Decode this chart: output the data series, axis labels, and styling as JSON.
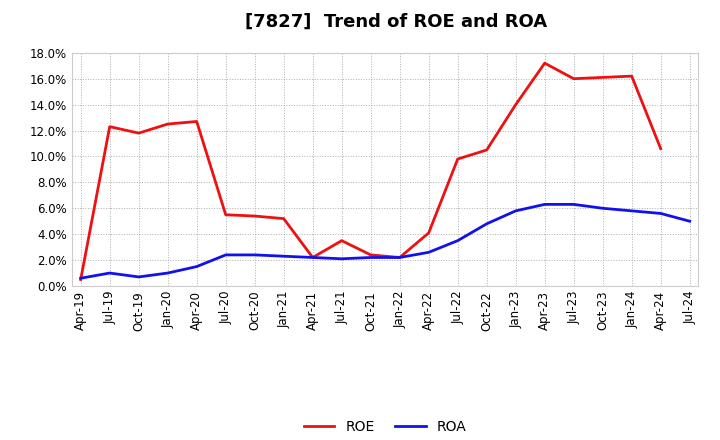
{
  "title": "[7827]  Trend of ROE and ROA",
  "x_labels": [
    "Apr-19",
    "Jul-19",
    "Oct-19",
    "Jan-20",
    "Apr-20",
    "Jul-20",
    "Oct-20",
    "Jan-21",
    "Apr-21",
    "Jul-21",
    "Oct-21",
    "Jan-22",
    "Apr-22",
    "Jul-22",
    "Oct-22",
    "Jan-23",
    "Apr-23",
    "Jul-23",
    "Oct-23",
    "Jan-24",
    "Apr-24",
    "Jul-24"
  ],
  "roe": [
    0.5,
    12.3,
    11.8,
    12.5,
    12.7,
    5.5,
    5.4,
    5.2,
    2.2,
    3.5,
    2.4,
    2.2,
    4.1,
    9.8,
    10.5,
    14.0,
    17.2,
    16.0,
    16.1,
    16.2,
    10.6,
    null
  ],
  "roa": [
    0.6,
    1.0,
    0.7,
    1.0,
    1.5,
    2.4,
    2.4,
    2.3,
    2.2,
    2.1,
    2.2,
    2.2,
    2.6,
    3.5,
    4.8,
    5.8,
    6.3,
    6.3,
    6.0,
    5.8,
    5.6,
    5.0
  ],
  "roe_color": "#ee1111",
  "roa_color": "#1111ee",
  "bg_color": "#ffffff",
  "plot_bg_color": "#ffffff",
  "grid_color": "#999999",
  "ylim": [
    0.0,
    18.0
  ],
  "yticks": [
    0.0,
    2.0,
    4.0,
    6.0,
    8.0,
    10.0,
    12.0,
    14.0,
    16.0,
    18.0
  ],
  "title_fontsize": 13,
  "tick_fontsize": 8.5,
  "legend_fontsize": 10,
  "linewidth": 2.0
}
